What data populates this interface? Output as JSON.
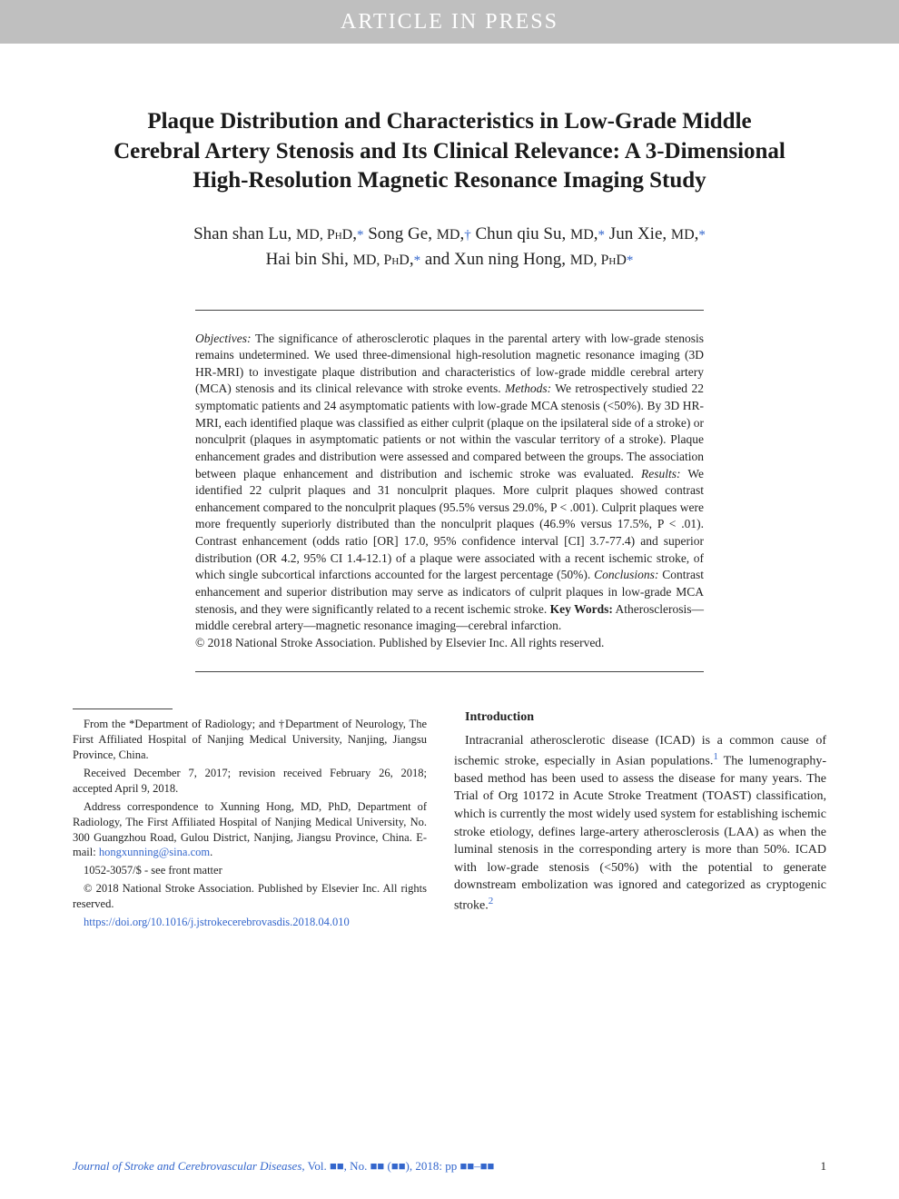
{
  "banner": {
    "text": "ARTICLE IN PRESS"
  },
  "title": "Plaque Distribution and Characteristics in Low-Grade Middle Cerebral Artery Stenosis and Its Clinical Relevance: A 3-Dimensional High-Resolution Magnetic Resonance Imaging Study",
  "authors_html": "Shan shan Lu, <span class='sc'>MD, PhD</span>,<span class='affil-mark'>*</span> Song Ge, <span class='sc'>MD</span>,<span class='affil-mark'>†</span> Chun qiu Su, <span class='sc'>MD</span>,<span class='affil-mark'>*</span> Jun Xie, <span class='sc'>MD</span>,<span class='affil-mark'>*</span><br>Hai bin Shi, <span class='sc'>MD, PhD</span>,<span class='affil-mark'>*</span> and Xun ning Hong, <span class='sc'>MD, PhD</span><span class='affil-mark'>*</span>",
  "abstract": {
    "objectives_label": "Objectives:",
    "objectives": "The significance of atherosclerotic plaques in the parental artery with low-grade stenosis remains undetermined. We used three-dimensional high-resolution magnetic resonance imaging (3D HR-MRI) to investigate plaque distribution and characteristics of low-grade middle cerebral artery (MCA) stenosis and its clinical relevance with stroke events.",
    "methods_label": "Methods:",
    "methods": "We retrospectively studied 22 symptomatic patients and 24 asymptomatic patients with low-grade MCA stenosis (<50%). By 3D HR-MRI, each identified plaque was classified as either culprit (plaque on the ipsilateral side of a stroke) or nonculprit (plaques in asymptomatic patients or not within the vascular territory of a stroke). Plaque enhancement grades and distribution were assessed and compared between the groups. The association between plaque enhancement and distribution and ischemic stroke was evaluated.",
    "results_label": "Results:",
    "results": "We identified 22 culprit plaques and 31 nonculprit plaques. More culprit plaques showed contrast enhancement compared to the nonculprit plaques (95.5% versus 29.0%, P < .001). Culprit plaques were more frequently superiorly distributed than the nonculprit plaques (46.9% versus 17.5%, P < .01). Contrast enhancement (odds ratio [OR] 17.0, 95% confidence interval [CI] 3.7-77.4) and superior distribution (OR 4.2, 95% CI 1.4-12.1) of a plaque were associated with a recent ischemic stroke, of which single subcortical infarctions accounted for the largest percentage (50%).",
    "conclusions_label": "Conclusions:",
    "conclusions": "Contrast enhancement and superior distribution may serve as indicators of culprit plaques in low-grade MCA stenosis, and they were significantly related to a recent ischemic stroke.",
    "keywords_label": "Key Words:",
    "keywords": "Atherosclerosis—middle cerebral artery—magnetic resonance imaging—cerebral infarction.",
    "copyright": "© 2018 National Stroke Association. Published by Elsevier Inc. All rights reserved."
  },
  "footnotes": {
    "affil": "From the *Department of Radiology; and †Department of Neurology, The First Affiliated Hospital of Nanjing Medical University, Nanjing, Jiangsu Province, China.",
    "received": "Received December 7, 2017; revision received February 26, 2018; accepted April 9, 2018.",
    "correspondence": "Address correspondence to Xunning Hong, MD, PhD, Department of Radiology, The First Affiliated Hospital of Nanjing Medical University, No. 300 Guangzhou Road, Gulou District, Nanjing, Jiangsu Province, China. E-mail: ",
    "email": "hongxunning@sina.com",
    "issn": "1052-3057/$ - see front matter",
    "copyright": "© 2018 National Stroke Association. Published by Elsevier Inc. All rights reserved.",
    "doi": "https://doi.org/10.1016/j.jstrokecerebrovasdis.2018.04.010"
  },
  "intro": {
    "heading": "Introduction",
    "para1_a": "Intracranial atherosclerotic disease (ICAD) is a common cause of ischemic stroke, especially in Asian populations.",
    "ref1": "1",
    "para1_b": " The lumenography-based method has been used to assess the disease for many years. The Trial of Org 10172 in Acute Stroke Treatment (TOAST) classification, which is currently the most widely used system for establishing ischemic stroke etiology, defines large-artery atherosclerosis (LAA) as when the luminal stenosis in the corresponding artery is more than 50%. ICAD with low-grade stenosis (<50%) with the potential to generate downstream embolization was ignored and categorized as cryptogenic stroke.",
    "ref2": "2"
  },
  "footer": {
    "journal": "Journal of Stroke and Cerebrovascular Diseases",
    "vol_text": ", Vol. ■■, No. ■■ (■■), 2018: pp ■■–■■",
    "pagenum": "1"
  },
  "colors": {
    "banner_bg": "#bfbfbf",
    "banner_text": "#ffffff",
    "body_text": "#222222",
    "link": "#3366cc",
    "rule": "#444444"
  },
  "typography": {
    "title_fontsize": 25,
    "authors_fontsize": 19,
    "abstract_fontsize": 13.5,
    "footnote_fontsize": 12.5,
    "body_fontsize": 14
  }
}
